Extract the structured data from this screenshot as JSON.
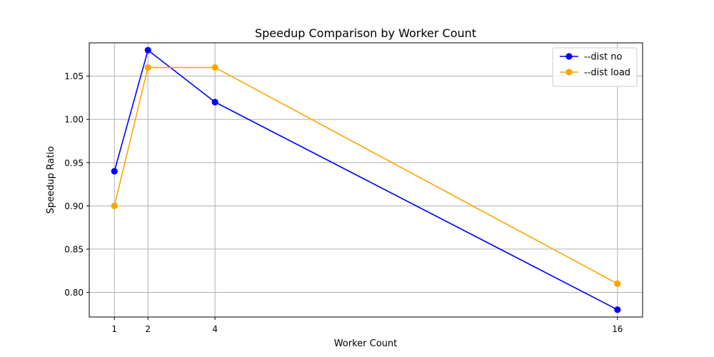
{
  "chart_data": {
    "type": "line",
    "title": "Speedup Comparison by Worker Count",
    "xlabel": "Worker Count",
    "ylabel": "Speedup Ratio",
    "x": [
      1,
      2,
      4,
      16
    ],
    "xticks": [
      "1",
      "2",
      "4",
      "16"
    ],
    "xlim": [
      0.25,
      16.75
    ],
    "ylim": [
      0.7715,
      1.0885
    ],
    "yticks": [
      0.8,
      0.85,
      0.9,
      0.95,
      1.0,
      1.05
    ],
    "ytick_labels": [
      "0.80",
      "0.85",
      "0.90",
      "0.95",
      "1.00",
      "1.05"
    ],
    "grid": true,
    "legend_position": "top-right",
    "series": [
      {
        "name": "--dist no",
        "color": "#0000ff",
        "values": [
          0.94,
          1.08,
          1.02,
          0.78
        ]
      },
      {
        "name": "--dist load",
        "color": "#ffa500",
        "values": [
          0.9,
          1.06,
          1.06,
          0.81
        ]
      }
    ]
  }
}
